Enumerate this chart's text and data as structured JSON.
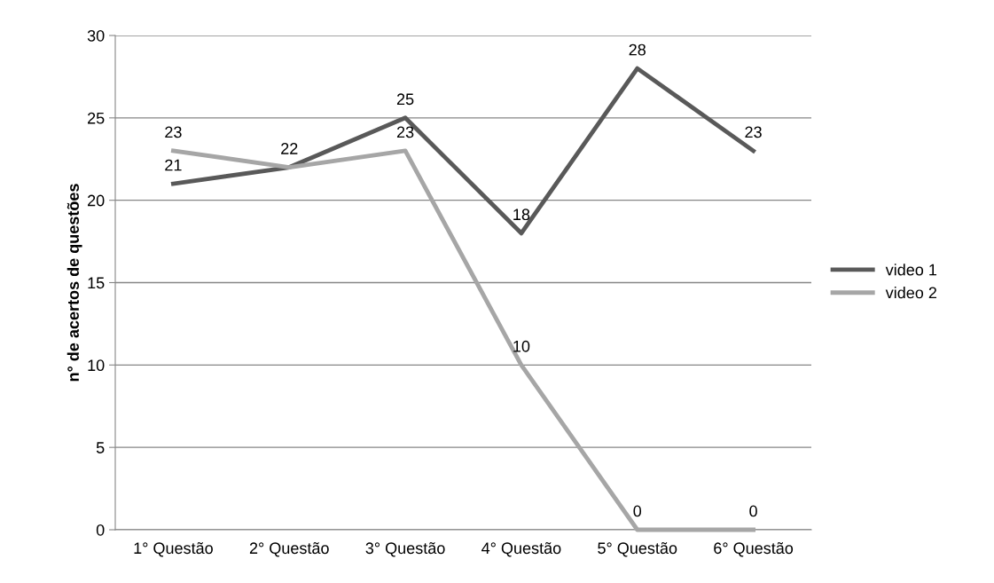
{
  "chart_data": {
    "type": "line",
    "ylabel": "n° de acertos de questões",
    "categories": [
      "1° Questão",
      "2° Questão",
      "3° Questão",
      "4° Questão",
      "5° Questão",
      "6° Questão"
    ],
    "series": [
      {
        "name": "video 1",
        "color": "#595959",
        "values": [
          21,
          22,
          25,
          18,
          28,
          23
        ],
        "value_labels": [
          "21",
          "22",
          "25",
          "18",
          "28",
          "23"
        ]
      },
      {
        "name": "video 2",
        "color": "#a6a6a6",
        "values": [
          23,
          22,
          23,
          10,
          0,
          0
        ],
        "value_labels": [
          "23",
          null,
          "23",
          "10",
          "0",
          "0"
        ]
      }
    ],
    "ylim": [
      0,
      30
    ],
    "yticks": [
      0,
      5,
      10,
      15,
      20,
      25,
      30
    ],
    "grid": "y",
    "legend": "right",
    "marker": "none",
    "line_style": "solid"
  }
}
